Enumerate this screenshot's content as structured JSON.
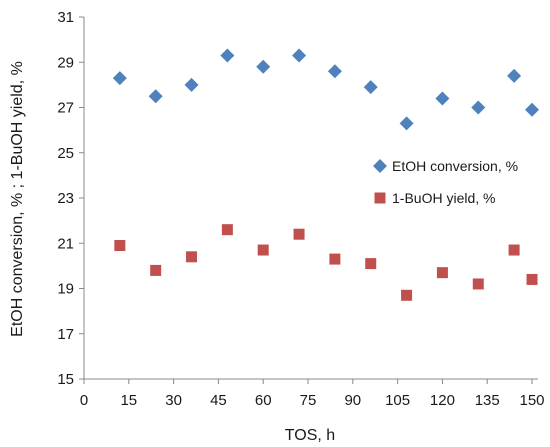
{
  "chart_data": {
    "type": "scatter",
    "title": "",
    "xlabel": "TOS, h",
    "ylabel": "EtOH conversion, % ;   1-BuOH yield, %",
    "xlim": [
      0,
      152
    ],
    "ylim": [
      15,
      31
    ],
    "x_ticks": [
      0,
      15,
      30,
      45,
      60,
      75,
      90,
      105,
      120,
      135,
      150
    ],
    "y_ticks": [
      15,
      17,
      19,
      21,
      23,
      25,
      27,
      29,
      31
    ],
    "grid": false,
    "legend_position": "right",
    "series": [
      {
        "name": "EtOH conversion, %",
        "marker": "diamond",
        "color": "#4f81bd",
        "x": [
          12,
          24,
          36,
          48,
          60,
          72,
          84,
          96,
          108,
          120,
          132,
          144,
          150
        ],
        "y": [
          28.3,
          27.5,
          28.0,
          29.3,
          28.8,
          29.3,
          28.6,
          27.9,
          26.3,
          27.4,
          27.0,
          28.4,
          26.9
        ]
      },
      {
        "name": "1-BuOH yield, %",
        "marker": "square",
        "color": "#c0504d",
        "x": [
          12,
          24,
          36,
          48,
          60,
          72,
          84,
          96,
          108,
          120,
          132,
          144,
          150
        ],
        "y": [
          20.9,
          19.8,
          20.4,
          21.6,
          20.7,
          21.4,
          20.3,
          20.1,
          18.7,
          19.7,
          19.2,
          20.7,
          19.4
        ]
      }
    ]
  }
}
